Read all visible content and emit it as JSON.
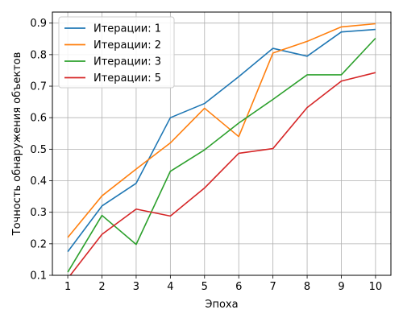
{
  "chart_data": {
    "type": "line",
    "xlabel": "Эпоха",
    "ylabel": "Точность обнаружения объектов",
    "x": [
      1,
      2,
      3,
      4,
      5,
      6,
      7,
      8,
      9,
      10
    ],
    "xticks": [
      "1",
      "2",
      "3",
      "4",
      "5",
      "6",
      "7",
      "8",
      "9",
      "10"
    ],
    "yticks": [
      "0.1",
      "0.2",
      "0.3",
      "0.4",
      "0.5",
      "0.6",
      "0.7",
      "0.8",
      "0.9"
    ],
    "xlim": [
      0.55,
      10.45
    ],
    "ylim": [
      0.1,
      0.935
    ],
    "grid": true,
    "legend_position": "top-left",
    "series": [
      {
        "name": "Итерации: 1",
        "color": "#1f77b4",
        "values": [
          0.175,
          0.32,
          0.392,
          0.6,
          0.645,
          0.73,
          0.82,
          0.795,
          0.872,
          0.88
        ]
      },
      {
        "name": "Итерации: 2",
        "color": "#ff7f0e",
        "values": [
          0.22,
          0.352,
          0.437,
          0.52,
          0.63,
          0.54,
          0.805,
          0.842,
          0.888,
          0.898
        ]
      },
      {
        "name": "Итерации: 3",
        "color": "#2ca02c",
        "values": [
          0.11,
          0.29,
          0.198,
          0.43,
          0.498,
          0.583,
          0.658,
          0.736,
          0.736,
          0.852
        ]
      },
      {
        "name": "Итерации: 5",
        "color": "#d62728",
        "values": [
          0.09,
          0.23,
          0.31,
          0.288,
          0.377,
          0.487,
          0.502,
          0.632,
          0.716,
          0.743
        ]
      }
    ]
  }
}
